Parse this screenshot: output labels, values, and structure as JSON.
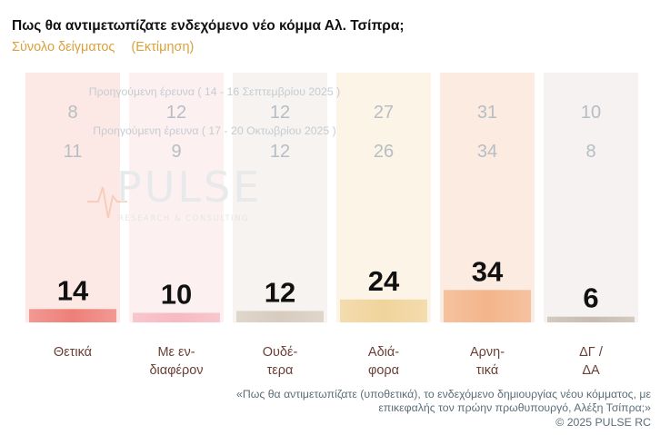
{
  "header": {
    "title": "Πως θα αντιμετωπίζατε ενδεχόμενο νέο κόμμα Αλ. Τσίπρα;",
    "sample_label": "Σύνολο δείγματος",
    "estimate_label": "(Εκτίμηση)"
  },
  "watermark": {
    "brand": "PULSE",
    "tagline": "RESEARCH & CONSULTING"
  },
  "chart_data": {
    "type": "bar",
    "categories": [
      [
        "Θετικά"
      ],
      [
        "Με εν-",
        "διαφέρον"
      ],
      [
        "Ουδέ-",
        "τερα"
      ],
      [
        "Αδιά-",
        "φορα"
      ],
      [
        "Αρνη-",
        "τικά"
      ],
      [
        "ΔΓ /",
        "ΔΑ"
      ]
    ],
    "values": [
      14,
      10,
      12,
      24,
      34,
      6
    ],
    "bar_colors": [
      "#ee7f78",
      "#f7b9c2",
      "#d8ccbf",
      "#f0d49c",
      "#f3b58a",
      "#c8bcb0"
    ],
    "column_bg_colors": [
      "#fbe5e2",
      "#fcedef",
      "#f4f1ee",
      "#fbf2e2",
      "#fbe8dc",
      "#f3f0ee"
    ],
    "previous_surveys": [
      {
        "label": "Προηγούμενη έρευνα ( 14 - 16 Σεπτεμβρίου 2025 )",
        "values": [
          8,
          12,
          12,
          27,
          31,
          10
        ]
      },
      {
        "label": "Προηγούμενη έρευνα ( 17 - 20 Οκτωβρίου 2025 )",
        "values": [
          11,
          9,
          12,
          26,
          34,
          8
        ]
      }
    ],
    "ylim": [
      0,
      100
    ]
  },
  "footer": {
    "question_note": "«Πως θα αντιμετωπίζατε (υποθετικά), το ενδεχόμενο δημιουργίας νέου κόμματος, με επικεφαλής τον πρώην πρωθυπουργό, Αλέξη Τσίπρα;»",
    "copyright": "©  2025  PULSE RC"
  }
}
